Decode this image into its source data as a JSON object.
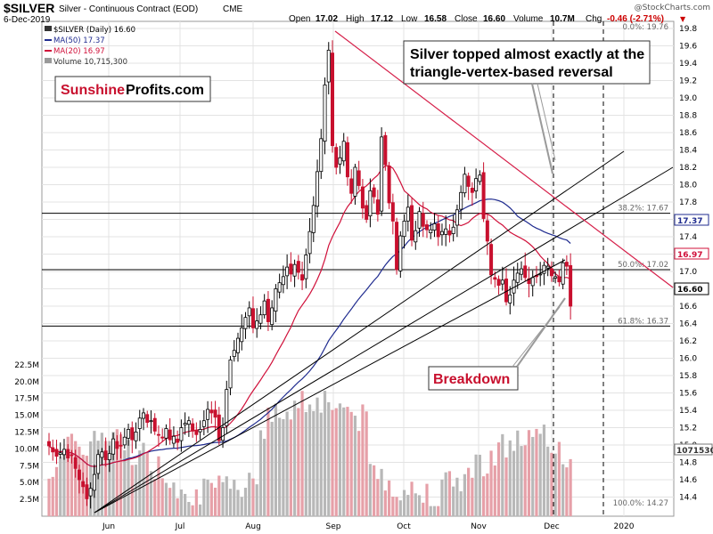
{
  "header": {
    "symbol": "$SILVER",
    "description": "Silver - Continuous Contract (EOD)",
    "exchange": "CME",
    "date": "6-Dec-2019",
    "open_label": "Open",
    "open": "17.02",
    "high_label": "High",
    "high": "17.12",
    "low_label": "Low",
    "low": "16.58",
    "close_label": "Close",
    "close": "16.60",
    "volume_label": "Volume",
    "volume": "10.7M",
    "chg_label": "Chg",
    "chg": "-0.46 (-2.71%)"
  },
  "watermark": "@StockCharts.com",
  "legend": {
    "price": "$SILVER (Daily) 16.60",
    "ma50": "MA(50) 17.37",
    "ma20": "MA(20) 16.97",
    "volume": "Volume 10,715,300"
  },
  "brand": {
    "part1": "Sunshine",
    "part2": "Profits.com"
  },
  "annotations": {
    "topped_line1": "Silver topped almost exactly at the",
    "topped_line2": "triangle-vertex-based reversal",
    "breakdown": "Breakdown"
  },
  "price_boxes": {
    "ma50": "17.37",
    "ma20": "16.97",
    "last": "16.60",
    "volume": "10715300"
  },
  "colors": {
    "up": "#000000",
    "down": "#c8102e",
    "ma50": "#1f2b8f",
    "ma20": "#d0103a",
    "trend_red": "#d6204a",
    "vol_up": "#b8b8b8",
    "vol_down": "#e6a0a8",
    "grid": "#e3e3e3"
  },
  "chart_data": {
    "type": "candlestick",
    "y_ticks": [
      "14.4",
      "14.6",
      "14.8",
      "15.0",
      "15.2",
      "15.4",
      "15.6",
      "15.8",
      "16.0",
      "16.2",
      "16.4",
      "16.6",
      "16.8",
      "17.0",
      "17.2",
      "17.4",
      "17.6",
      "17.8",
      "18.0",
      "18.2",
      "18.4",
      "18.6",
      "18.8",
      "19.0",
      "19.2",
      "19.4",
      "19.6",
      "19.8"
    ],
    "ylim": [
      14.3,
      19.85
    ],
    "x_tick_labels": [
      "Jun",
      "Jul",
      "Aug",
      "Sep",
      "Oct",
      "Nov",
      "Dec",
      "2020"
    ],
    "volume_ticks": [
      "2.5M",
      "5.0M",
      "7.5M",
      "10.0M",
      "12.5M",
      "15.0M",
      "17.5M",
      "20.0M",
      "22.5M"
    ],
    "volume_range": [
      0,
      25000000
    ],
    "fib_levels": [
      {
        "label": "0.0%: 19.76",
        "value": 19.76
      },
      {
        "label": "38.2%: 17.67",
        "value": 17.67
      },
      {
        "label": "50.0%: 17.02",
        "value": 17.02
      },
      {
        "label": "61.8%: 16.37",
        "value": 16.37
      },
      {
        "label": "100.0%: 14.27",
        "value": 14.27
      }
    ],
    "closes": [
      14.99,
      14.92,
      14.87,
      14.91,
      14.95,
      14.85,
      14.88,
      14.73,
      14.6,
      14.52,
      14.38,
      14.5,
      14.66,
      14.89,
      14.92,
      14.83,
      14.9,
      15.07,
      14.96,
      14.99,
      15.09,
      15.18,
      15.06,
      15.15,
      15.31,
      15.37,
      15.26,
      15.28,
      15.16,
      15.12,
      15.08,
      15.19,
      15.06,
      15.1,
      15.03,
      15.2,
      15.25,
      15.28,
      15.16,
      15.12,
      15.18,
      15.28,
      15.41,
      15.37,
      15.32,
      15.05,
      15.2,
      15.64,
      15.98,
      16.09,
      16.23,
      16.35,
      16.47,
      16.58,
      16.35,
      16.43,
      16.5,
      16.66,
      16.42,
      16.58,
      16.8,
      16.87,
      16.94,
      17.05,
      16.97,
      17.08,
      16.99,
      16.9,
      17.19,
      17.46,
      17.76,
      18.15,
      18.53,
      19.15,
      19.55,
      18.45,
      18.2,
      18.31,
      18.5,
      18.09,
      17.9,
      18.2,
      17.99,
      17.73,
      17.6,
      17.93,
      17.86,
      17.66,
      18.55,
      18.23,
      17.79,
      17.58,
      17.02,
      17.41,
      17.58,
      17.74,
      17.36,
      17.47,
      17.69,
      17.52,
      17.48,
      17.48,
      17.55,
      17.4,
      17.46,
      17.49,
      17.42,
      17.51,
      17.71,
      17.91,
      18.12,
      17.98,
      17.91,
      18.07,
      18.11,
      17.61,
      17.35,
      16.96,
      16.91,
      16.84,
      16.9,
      16.65,
      16.73,
      16.9,
      16.98,
      17.03,
      16.93,
      16.86,
      16.93,
      16.94,
      16.97,
      17.07,
      17.06,
      16.95,
      16.94,
      16.88,
      17.1,
      17.06,
      16.6
    ],
    "x_dates_first": "2019-05-24",
    "x_dates_last": "2019-12-06"
  }
}
